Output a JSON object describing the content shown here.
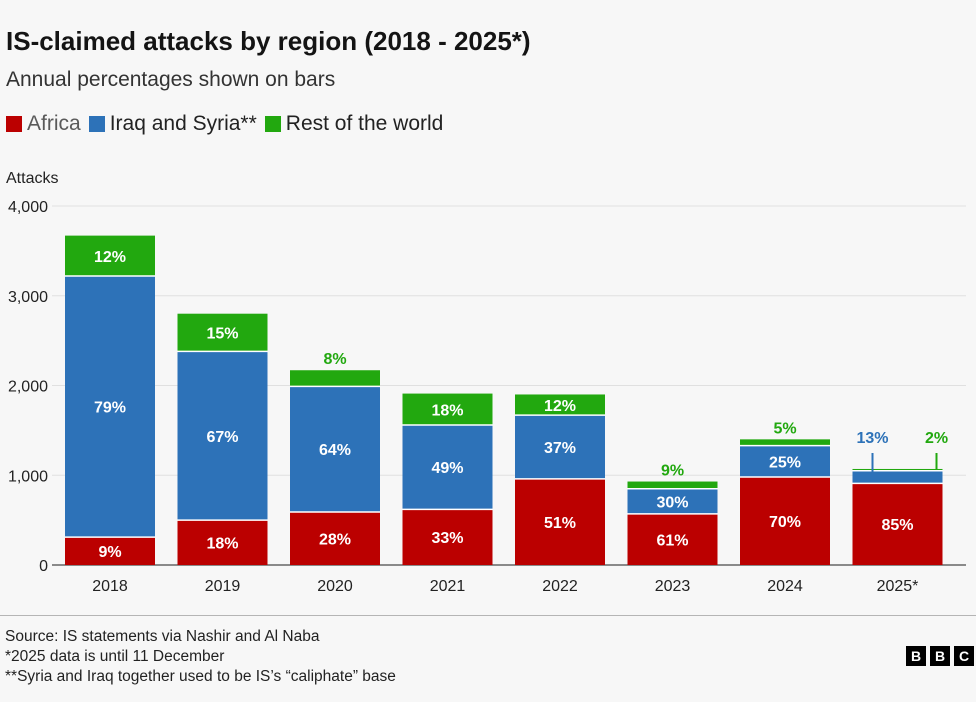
{
  "title": "IS-claimed attacks by region (2018 - 2025*)",
  "subtitle": "Annual percentages shown on bars",
  "legend": [
    {
      "label": "Africa",
      "color": "#bb0000"
    },
    {
      "label": "Iraq and Syria**",
      "color": "#2d72b8"
    },
    {
      "label": "Rest of the world",
      "color": "#22a80f"
    }
  ],
  "footer": {
    "source": "Source: IS statements via Nashir and Al Naba",
    "note1": "*2025 data is until 11 December",
    "note2": "**Syria and Iraq together used to be IS’s “caliphate” base"
  },
  "logo": [
    "B",
    "B",
    "C"
  ],
  "chart_data": {
    "type": "bar",
    "stacked": true,
    "title": "IS-claimed attacks by region (2018 - 2025*)",
    "subtitle": "Annual percentages shown on bars",
    "ylabel": "Attacks",
    "xlabel": "",
    "ylim": [
      0,
      4000
    ],
    "yticks": [
      0,
      1000,
      2000,
      3000,
      4000
    ],
    "ytick_labels": [
      "0",
      "1,000",
      "2,000",
      "3,000",
      "4,000"
    ],
    "grid": true,
    "legend_position": "top-left",
    "categories": [
      "2018",
      "2019",
      "2020",
      "2021",
      "2022",
      "2023",
      "2024",
      "2025*"
    ],
    "series": [
      {
        "name": "Africa",
        "color": "#bb0000",
        "values": [
          310,
          500,
          590,
          620,
          960,
          570,
          980,
          910
        ],
        "labels": [
          "9%",
          "18%",
          "28%",
          "33%",
          "51%",
          "61%",
          "70%",
          "85%"
        ]
      },
      {
        "name": "Iraq and Syria**",
        "color": "#2d72b8",
        "values": [
          2910,
          1880,
          1400,
          940,
          710,
          280,
          350,
          140
        ],
        "labels": [
          "79%",
          "67%",
          "64%",
          "49%",
          "37%",
          "30%",
          "25%",
          "13%"
        ]
      },
      {
        "name": "Rest of the world",
        "color": "#22a80f",
        "values": [
          450,
          420,
          180,
          350,
          230,
          80,
          70,
          20
        ],
        "labels": [
          "12%",
          "15%",
          "8%",
          "18%",
          "12%",
          "9%",
          "5%",
          "2%"
        ]
      }
    ]
  }
}
